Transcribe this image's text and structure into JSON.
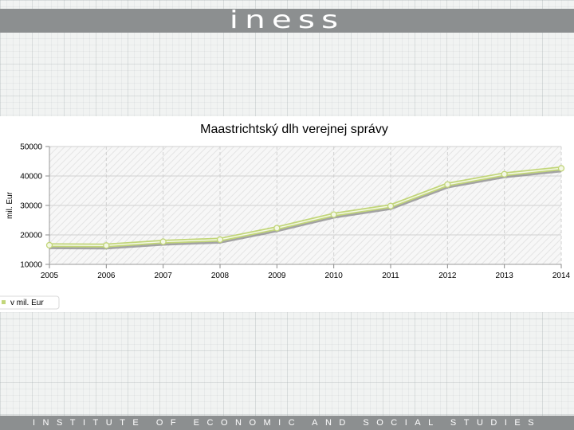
{
  "header": {
    "logo_text": "iness"
  },
  "footer": {
    "tagline": "INSTITUTE OF ECONOMIC AND SOCIAL STUDIES"
  },
  "colors": {
    "series_line": "#c2d67a",
    "series_fill": "#f4f8e6",
    "shadow": "#888888",
    "bar": "#8c8f90"
  },
  "chart_data": {
    "type": "line",
    "title": "Maastrichtský dlh verejnej správy",
    "ylabel": "mil. Eur",
    "xlabel": "",
    "x": [
      "2005",
      "2006",
      "2007",
      "2008",
      "2009",
      "2010",
      "2011",
      "2012",
      "2013",
      "2014"
    ],
    "yticks": [
      "10000",
      "20000",
      "30000",
      "40000",
      "50000"
    ],
    "ylim": [
      10000,
      50000
    ],
    "grid": true,
    "legend": "bottom-left",
    "series": [
      {
        "name": "v mil. Eur",
        "values": [
          16500,
          16400,
          17700,
          18400,
          22300,
          26900,
          29800,
          37100,
          40600,
          42600
        ]
      }
    ]
  }
}
